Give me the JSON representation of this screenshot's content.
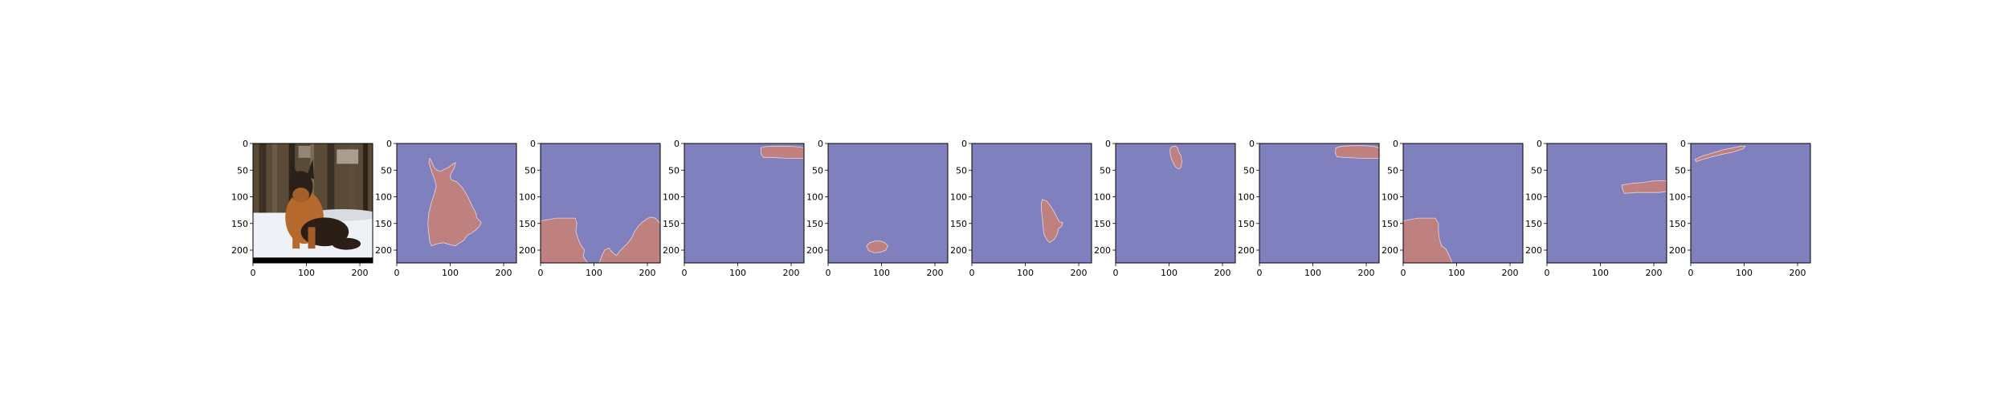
{
  "figure": {
    "background": "#ffffff",
    "panel_count": 11,
    "colors": {
      "background_mask": "#8080bf",
      "segment": "#bf8080",
      "segment_edge": "#e8d6d6",
      "axis": "#000000"
    }
  },
  "chart_data": [
    {
      "type": "image",
      "panel": 1,
      "content": "photo of a German Shepherd dog lying on snow in a forest",
      "xlim": [
        0,
        224
      ],
      "ylim": [
        224,
        0
      ],
      "xticks": [
        0,
        100,
        200
      ],
      "yticks": [
        0,
        50,
        100,
        150,
        200
      ],
      "title": ""
    },
    {
      "type": "heatmap",
      "panel": 2,
      "mask": "segment-2",
      "xlim": [
        0,
        224
      ],
      "ylim": [
        224,
        0
      ],
      "xticks": [
        0,
        100,
        200
      ],
      "yticks": [
        0,
        50,
        100,
        150,
        200
      ],
      "title": ""
    },
    {
      "type": "heatmap",
      "panel": 3,
      "mask": "segment-3",
      "xlim": [
        0,
        224
      ],
      "ylim": [
        224,
        0
      ],
      "xticks": [
        0,
        100,
        200
      ],
      "yticks": [
        0,
        50,
        100,
        150,
        200
      ],
      "title": ""
    },
    {
      "type": "heatmap",
      "panel": 4,
      "mask": "segment-4",
      "xlim": [
        0,
        224
      ],
      "ylim": [
        224,
        0
      ],
      "xticks": [
        0,
        100,
        200
      ],
      "yticks": [
        0,
        50,
        100,
        150,
        200
      ],
      "title": ""
    },
    {
      "type": "heatmap",
      "panel": 5,
      "mask": "segment-5",
      "xlim": [
        0,
        224
      ],
      "ylim": [
        224,
        0
      ],
      "xticks": [
        0,
        100,
        200
      ],
      "yticks": [
        0,
        50,
        100,
        150,
        200
      ],
      "title": ""
    },
    {
      "type": "heatmap",
      "panel": 6,
      "mask": "segment-6",
      "xlim": [
        0,
        224
      ],
      "ylim": [
        224,
        0
      ],
      "xticks": [
        0,
        100,
        200
      ],
      "yticks": [
        0,
        50,
        100,
        150,
        200
      ],
      "title": ""
    },
    {
      "type": "heatmap",
      "panel": 7,
      "mask": "segment-7",
      "xlim": [
        0,
        224
      ],
      "ylim": [
        224,
        0
      ],
      "xticks": [
        0,
        100,
        200
      ],
      "yticks": [
        0,
        50,
        100,
        150,
        200
      ],
      "title": ""
    },
    {
      "type": "heatmap",
      "panel": 8,
      "mask": "segment-8",
      "xlim": [
        0,
        224
      ],
      "ylim": [
        224,
        0
      ],
      "xticks": [
        0,
        100,
        200
      ],
      "yticks": [
        0,
        50,
        100,
        150,
        200
      ],
      "title": ""
    },
    {
      "type": "heatmap",
      "panel": 9,
      "mask": "segment-9",
      "xlim": [
        0,
        224
      ],
      "ylim": [
        224,
        0
      ],
      "xticks": [
        0,
        100,
        200
      ],
      "yticks": [
        0,
        50,
        100,
        150,
        200
      ],
      "title": ""
    },
    {
      "type": "heatmap",
      "panel": 10,
      "mask": "segment-10",
      "xlim": [
        0,
        224
      ],
      "ylim": [
        224,
        0
      ],
      "xticks": [
        0,
        100,
        200
      ],
      "yticks": [
        0,
        50,
        100,
        150,
        200
      ],
      "title": ""
    },
    {
      "type": "heatmap",
      "panel": 11,
      "mask": "segment-11",
      "xlim": [
        0,
        224
      ],
      "ylim": [
        224,
        0
      ],
      "xticks": [
        0,
        100,
        200
      ],
      "yticks": [
        0,
        50,
        100,
        150,
        200
      ],
      "title": ""
    }
  ]
}
